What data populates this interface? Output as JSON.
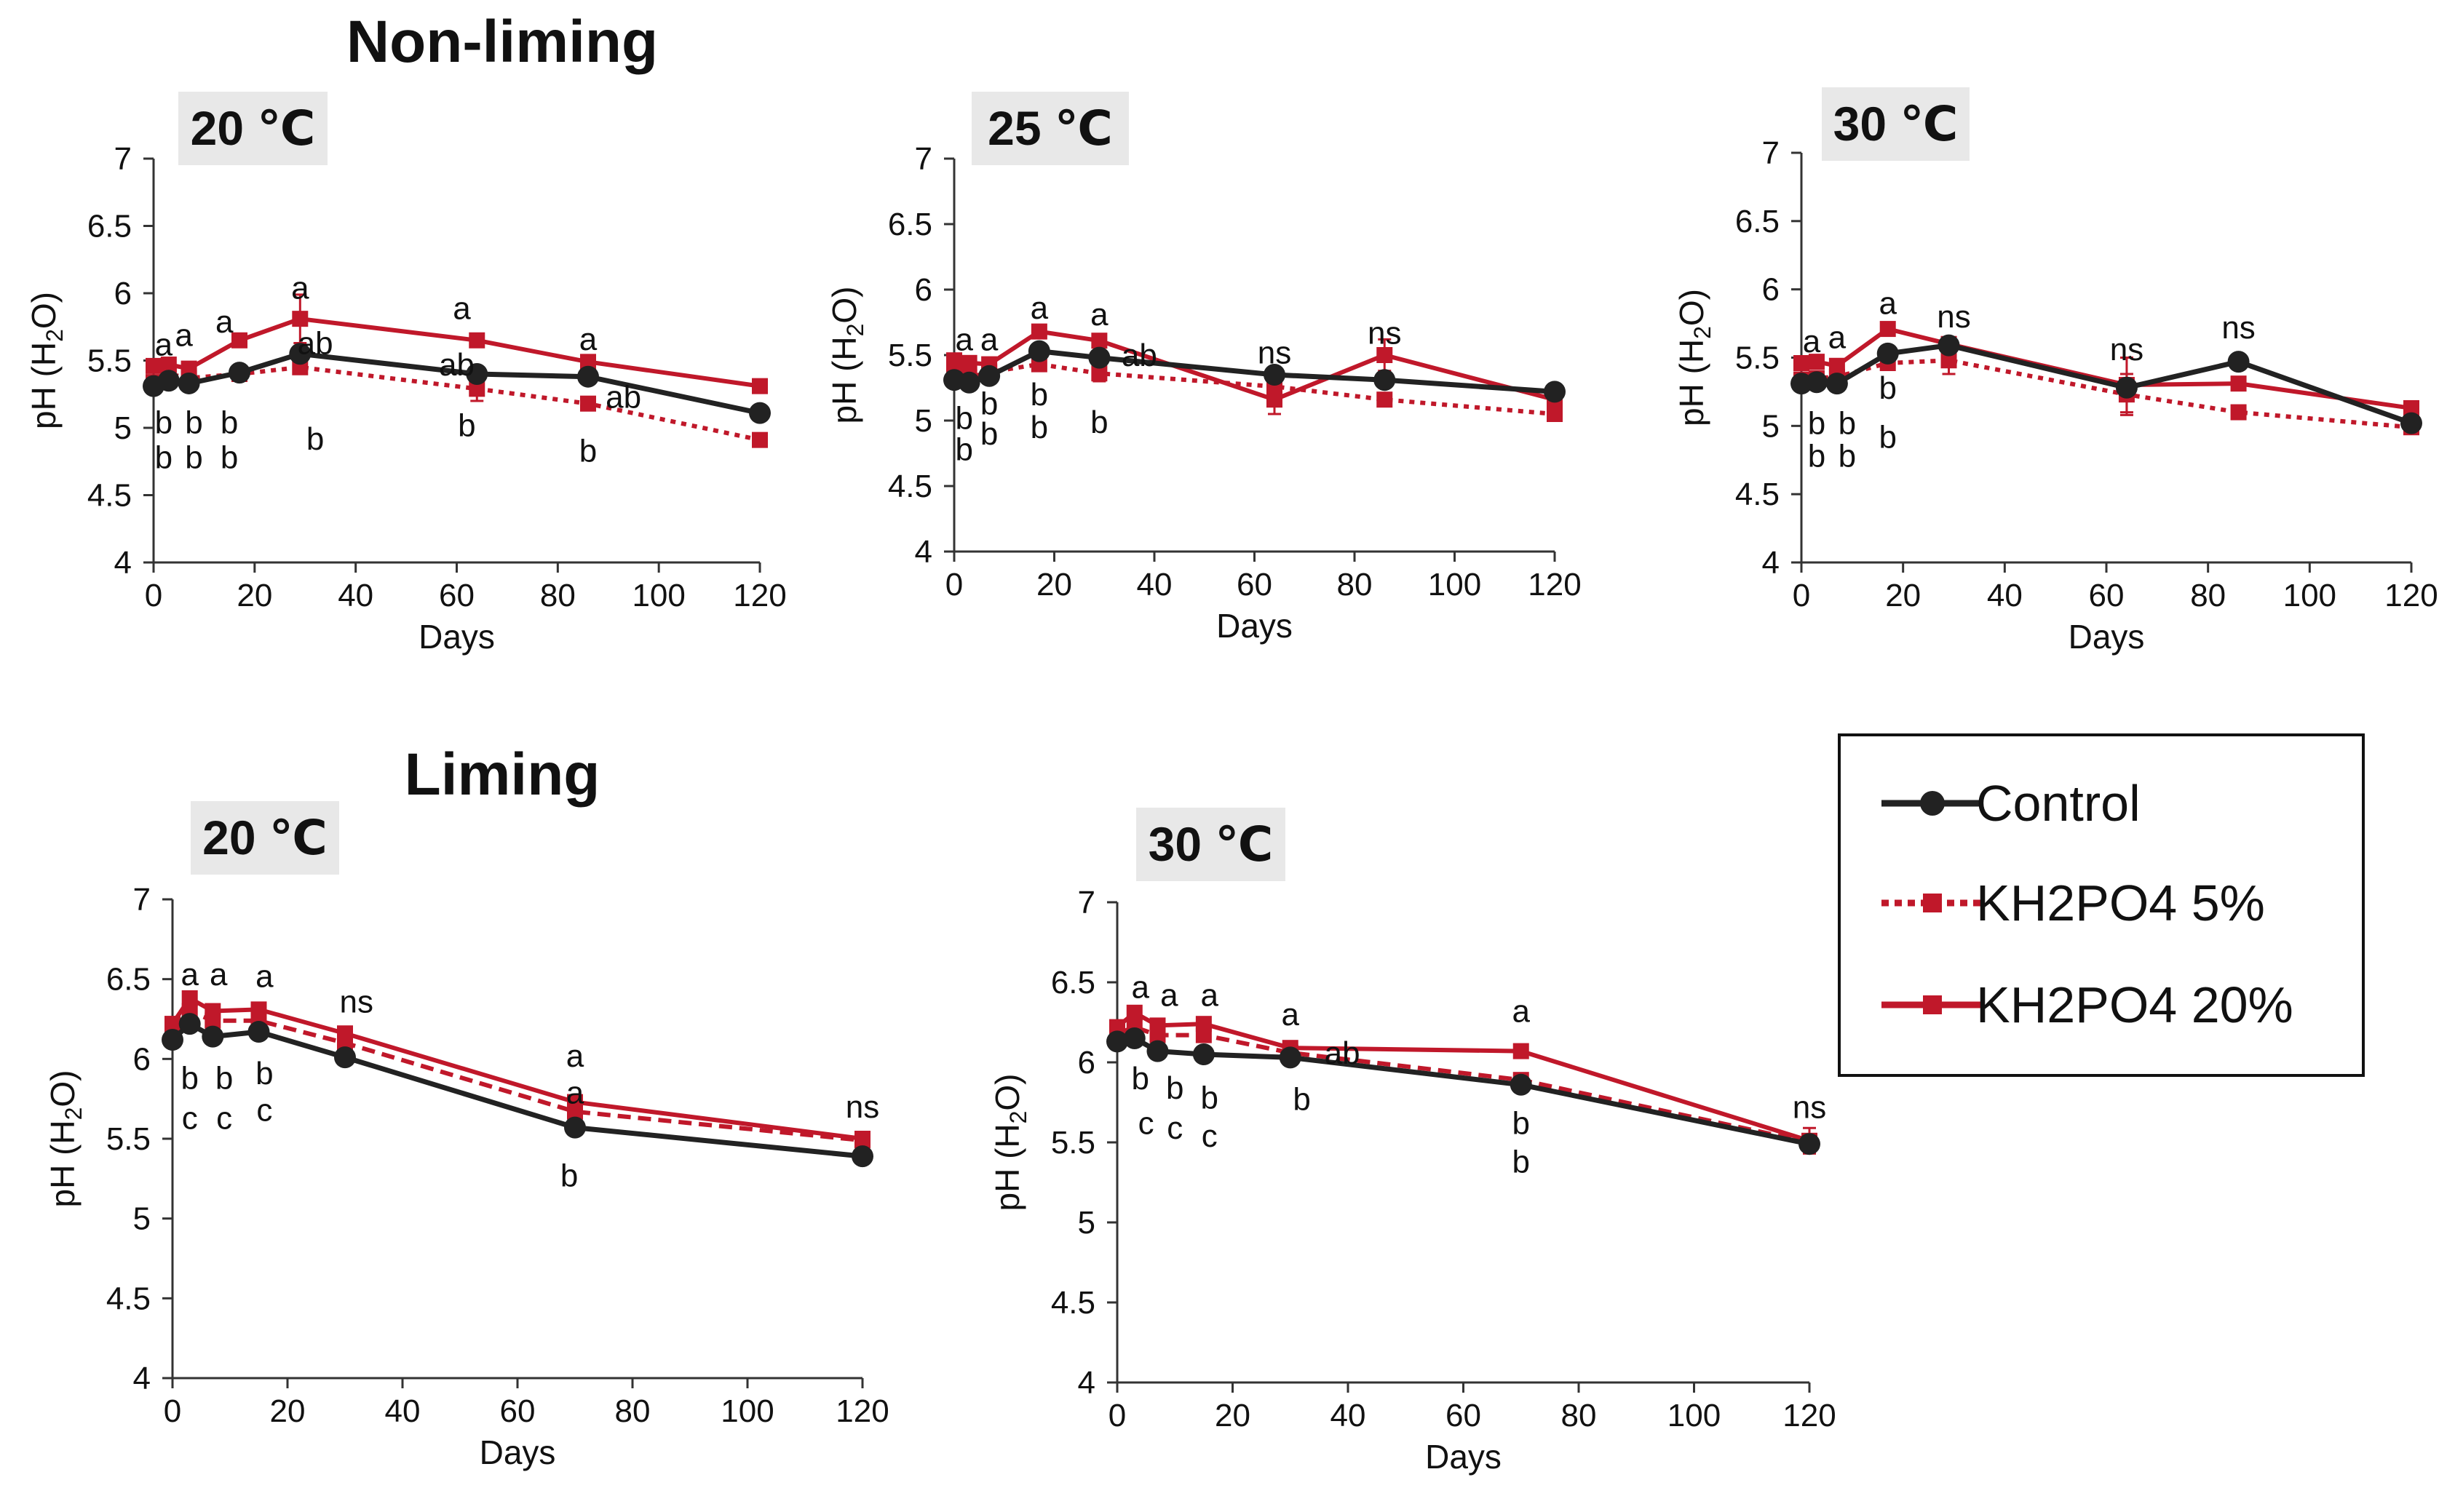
{
  "section_titles": {
    "nonliming": "Non-liming",
    "liming": "Liming"
  },
  "legend": {
    "control": "Control",
    "kh5": "KH2PO4 5%",
    "kh20": "KH2PO4 20%"
  },
  "colors": {
    "control": "#222222",
    "kh5": "#c0182a",
    "kh20": "#c0182a",
    "panel_bg": "#e8e8e8"
  },
  "chart_data": [
    {
      "id": "nl20",
      "type": "line",
      "panel_label": "20 ℃",
      "xlabel": "Days",
      "ylabel": "pH (H2O)",
      "xlim": [
        0,
        120
      ],
      "ylim": [
        4,
        7
      ],
      "xticks": [
        "0",
        "20",
        "40",
        "60",
        "80",
        "100",
        "120"
      ],
      "yticks": [
        "4",
        "4.5",
        "5",
        "5.5",
        "6",
        "6.5",
        "7"
      ],
      "series": [
        {
          "name": "Control",
          "key": "control",
          "x": [
            0,
            3,
            7,
            17,
            29,
            64,
            86,
            120
          ],
          "values": [
            5.31,
            5.35,
            5.33,
            5.41,
            5.55,
            5.4,
            5.38,
            5.11
          ]
        },
        {
          "name": "KH2PO4 5%",
          "key": "kh5",
          "x": [
            0,
            3,
            7,
            17,
            29,
            64,
            86,
            120
          ],
          "values": [
            5.34,
            5.4,
            5.37,
            5.4,
            5.45,
            5.29,
            5.18,
            4.91
          ],
          "err": [
            0,
            0,
            0,
            0,
            0,
            0.09,
            0,
            0
          ]
        },
        {
          "name": "KH2PO4 20%",
          "key": "kh20",
          "x": [
            0,
            3,
            7,
            17,
            29,
            64,
            86,
            120
          ],
          "values": [
            5.46,
            5.47,
            5.44,
            5.65,
            5.81,
            5.65,
            5.49,
            5.31
          ],
          "err": [
            0,
            0,
            0,
            0,
            0.18,
            0,
            0,
            0
          ]
        }
      ],
      "annotations": [
        {
          "text": "a",
          "x": 2,
          "y": 5.62
        },
        {
          "text": "a",
          "x": 6,
          "y": 5.69
        },
        {
          "text": "b",
          "x": 2,
          "y": 5.04
        },
        {
          "text": "b",
          "x": 2,
          "y": 4.78
        },
        {
          "text": "b",
          "x": 8,
          "y": 5.04
        },
        {
          "text": "b",
          "x": 8,
          "y": 4.78
        },
        {
          "text": "a",
          "x": 14,
          "y": 5.79
        },
        {
          "text": "b",
          "x": 15,
          "y": 5.04
        },
        {
          "text": "b",
          "x": 15,
          "y": 4.78
        },
        {
          "text": "a",
          "x": 29,
          "y": 6.04
        },
        {
          "text": "ab",
          "x": 32,
          "y": 5.63
        },
        {
          "text": "b",
          "x": 32,
          "y": 4.92
        },
        {
          "text": "a",
          "x": 61,
          "y": 5.89
        },
        {
          "text": "ab",
          "x": 60,
          "y": 5.47
        },
        {
          "text": "b",
          "x": 62,
          "y": 5.02
        },
        {
          "text": "a",
          "x": 86,
          "y": 5.66
        },
        {
          "text": "ab",
          "x": 93,
          "y": 5.23
        },
        {
          "text": "b",
          "x": 86,
          "y": 4.83
        }
      ]
    },
    {
      "id": "nl25",
      "type": "line",
      "panel_label": "25 ℃",
      "xlabel": "Days",
      "ylabel": "pH (H2O)",
      "xlim": [
        0,
        120
      ],
      "ylim": [
        4,
        7
      ],
      "xticks": [
        "0",
        "20",
        "40",
        "60",
        "80",
        "100",
        "120"
      ],
      "yticks": [
        "4",
        "4.5",
        "5",
        "5.5",
        "6",
        "6.5",
        "7"
      ],
      "series": [
        {
          "name": "Control",
          "key": "control",
          "x": [
            0,
            3,
            7,
            17,
            29,
            64,
            86,
            120
          ],
          "values": [
            5.31,
            5.29,
            5.34,
            5.53,
            5.48,
            5.35,
            5.31,
            5.22
          ]
        },
        {
          "name": "KH2PO4 5%",
          "key": "kh5",
          "x": [
            0,
            3,
            7,
            17,
            29,
            64,
            86,
            120
          ],
          "values": [
            5.34,
            5.33,
            5.37,
            5.43,
            5.36,
            5.26,
            5.16,
            5.05
          ],
          "err": [
            0,
            0,
            0,
            0,
            0.06,
            0,
            0.05,
            0
          ]
        },
        {
          "name": "KH2PO4 20%",
          "key": "kh20",
          "x": [
            0,
            3,
            7,
            17,
            29,
            64,
            86,
            120
          ],
          "values": [
            5.46,
            5.44,
            5.43,
            5.68,
            5.61,
            5.16,
            5.5,
            5.16
          ],
          "err": [
            0,
            0,
            0,
            0,
            0,
            0.11,
            0.12,
            0
          ]
        }
      ],
      "annotations": [
        {
          "text": "a",
          "x": 2,
          "y": 5.62
        },
        {
          "text": "a",
          "x": 7,
          "y": 5.62
        },
        {
          "text": "b",
          "x": 2,
          "y": 5.02
        },
        {
          "text": "b",
          "x": 2,
          "y": 4.78
        },
        {
          "text": "b",
          "x": 7,
          "y": 5.13
        },
        {
          "text": "b",
          "x": 7,
          "y": 4.9
        },
        {
          "text": "a",
          "x": 17,
          "y": 5.86
        },
        {
          "text": "b",
          "x": 17,
          "y": 5.2
        },
        {
          "text": "b",
          "x": 17,
          "y": 4.95
        },
        {
          "text": "a",
          "x": 29,
          "y": 5.81
        },
        {
          "text": "ab",
          "x": 37,
          "y": 5.5
        },
        {
          "text": "b",
          "x": 29,
          "y": 4.99
        },
        {
          "text": "ns",
          "x": 64,
          "y": 5.52
        },
        {
          "text": "ns",
          "x": 86,
          "y": 5.67
        }
      ]
    },
    {
      "id": "nl30",
      "type": "line",
      "panel_label": "30 ℃",
      "xlabel": "Days",
      "ylabel": "pH (H2O)",
      "xlim": [
        0,
        120
      ],
      "ylim": [
        4,
        7
      ],
      "xticks": [
        "0",
        "20",
        "40",
        "60",
        "80",
        "100",
        "120"
      ],
      "yticks": [
        "4",
        "4.5",
        "5",
        "5.5",
        "6",
        "6.5",
        "7"
      ],
      "series": [
        {
          "name": "Control",
          "key": "control",
          "x": [
            0,
            3,
            7,
            17,
            29,
            64,
            86,
            120
          ],
          "values": [
            5.31,
            5.32,
            5.31,
            5.53,
            5.59,
            5.28,
            5.47,
            5.02
          ]
        },
        {
          "name": "KH2PO4 5%",
          "key": "kh5",
          "x": [
            0,
            3,
            7,
            17,
            29,
            64,
            86,
            120
          ],
          "values": [
            5.34,
            5.35,
            5.36,
            5.46,
            5.48,
            5.23,
            5.1,
            4.99
          ],
          "err": [
            0,
            0,
            0,
            0,
            0.1,
            0.15,
            0,
            0
          ]
        },
        {
          "name": "KH2PO4 20%",
          "key": "kh20",
          "x": [
            0,
            3,
            7,
            17,
            29,
            64,
            86,
            120
          ],
          "values": [
            5.46,
            5.47,
            5.44,
            5.71,
            5.6,
            5.3,
            5.31,
            5.13
          ],
          "err": [
            0,
            0,
            0,
            0,
            0,
            0.2,
            0,
            0
          ]
        }
      ],
      "annotations": [
        {
          "text": "a",
          "x": 2,
          "y": 5.62
        },
        {
          "text": "a",
          "x": 7,
          "y": 5.65
        },
        {
          "text": "b",
          "x": 3,
          "y": 5.02
        },
        {
          "text": "b",
          "x": 3,
          "y": 4.78
        },
        {
          "text": "b",
          "x": 9,
          "y": 5.02
        },
        {
          "text": "b",
          "x": 9,
          "y": 4.78
        },
        {
          "text": "a",
          "x": 17,
          "y": 5.9
        },
        {
          "text": "b",
          "x": 17,
          "y": 5.28
        },
        {
          "text": "b",
          "x": 17,
          "y": 4.92
        },
        {
          "text": "ns",
          "x": 30,
          "y": 5.8
        },
        {
          "text": "ns",
          "x": 64,
          "y": 5.56
        },
        {
          "text": "ns",
          "x": 86,
          "y": 5.72
        }
      ]
    },
    {
      "id": "l20",
      "type": "line",
      "panel_label": "20 ℃",
      "xlabel": "Days",
      "ylabel": "pH (H2O)",
      "xlim": [
        0,
        120
      ],
      "ylim": [
        4,
        7
      ],
      "xticks": [
        "0",
        "20",
        "40",
        "60",
        "80",
        "100",
        "120"
      ],
      "yticks": [
        "4",
        "4.5",
        "5",
        "5.5",
        "6",
        "6.5",
        "7"
      ],
      "series": [
        {
          "name": "Control",
          "key": "control",
          "x": [
            0,
            3,
            7,
            15,
            30,
            70,
            120
          ],
          "values": [
            6.12,
            6.22,
            6.14,
            6.17,
            6.01,
            5.57,
            5.39
          ]
        },
        {
          "name": "KH2PO4 5%",
          "key": "kh5",
          "x": [
            0,
            3,
            7,
            15,
            30,
            70,
            120
          ],
          "values": [
            6.18,
            6.3,
            6.24,
            6.24,
            6.1,
            5.67,
            5.49
          ]
        },
        {
          "name": "KH2PO4 20%",
          "key": "kh20",
          "x": [
            0,
            3,
            7,
            15,
            30,
            70,
            120
          ],
          "values": [
            6.22,
            6.38,
            6.3,
            6.31,
            6.16,
            5.73,
            5.5
          ]
        }
      ],
      "annotations": [
        {
          "text": "a",
          "x": 3,
          "y": 6.53
        },
        {
          "text": "a",
          "x": 8,
          "y": 6.53
        },
        {
          "text": "a",
          "x": 16,
          "y": 6.52
        },
        {
          "text": "b",
          "x": 3,
          "y": 5.88
        },
        {
          "text": "c",
          "x": 3,
          "y": 5.63
        },
        {
          "text": "b",
          "x": 9,
          "y": 5.88
        },
        {
          "text": "c",
          "x": 9,
          "y": 5.63
        },
        {
          "text": "b",
          "x": 16,
          "y": 5.91
        },
        {
          "text": "c",
          "x": 16,
          "y": 5.68
        },
        {
          "text": "ns",
          "x": 32,
          "y": 6.36
        },
        {
          "text": "a",
          "x": 70,
          "y": 6.02
        },
        {
          "text": "a",
          "x": 70,
          "y": 5.79
        },
        {
          "text": "b",
          "x": 69,
          "y": 5.27
        },
        {
          "text": "ns",
          "x": 120,
          "y": 5.7
        }
      ]
    },
    {
      "id": "l30",
      "type": "line",
      "panel_label": "30 ℃",
      "xlabel": "Days",
      "ylabel": "pH (H2O)",
      "xlim": [
        0,
        120
      ],
      "ylim": [
        4,
        7
      ],
      "xticks": [
        "0",
        "20",
        "40",
        "60",
        "80",
        "100",
        "120"
      ],
      "yticks": [
        "4",
        "4.5",
        "5",
        "5.5",
        "6",
        "6.5",
        "7"
      ],
      "series": [
        {
          "name": "Control",
          "key": "control",
          "x": [
            0,
            3,
            7,
            15,
            30,
            70,
            120
          ],
          "values": [
            6.13,
            6.15,
            6.07,
            6.05,
            6.03,
            5.86,
            5.49
          ]
        },
        {
          "name": "KH2PO4 5%",
          "key": "kh5",
          "x": [
            0,
            3,
            7,
            15,
            30,
            70,
            120
          ],
          "values": [
            6.18,
            6.22,
            6.17,
            6.17,
            6.06,
            5.89,
            5.5
          ]
        },
        {
          "name": "KH2PO4 20%",
          "key": "kh20",
          "x": [
            0,
            3,
            7,
            15,
            30,
            70,
            120
          ],
          "values": [
            6.22,
            6.31,
            6.23,
            6.24,
            6.09,
            6.07,
            5.51
          ],
          "err": [
            0,
            0,
            0,
            0,
            0,
            0,
            0.08
          ]
        }
      ],
      "annotations": [
        {
          "text": "a",
          "x": 4,
          "y": 6.47
        },
        {
          "text": "a",
          "x": 9,
          "y": 6.42
        },
        {
          "text": "a",
          "x": 16,
          "y": 6.42
        },
        {
          "text": "b",
          "x": 4,
          "y": 5.9
        },
        {
          "text": "c",
          "x": 5,
          "y": 5.62
        },
        {
          "text": "b",
          "x": 10,
          "y": 5.84
        },
        {
          "text": "c",
          "x": 10,
          "y": 5.59
        },
        {
          "text": "b",
          "x": 16,
          "y": 5.78
        },
        {
          "text": "c",
          "x": 16,
          "y": 5.54
        },
        {
          "text": "a",
          "x": 30,
          "y": 6.3
        },
        {
          "text": "ab",
          "x": 39,
          "y": 6.06
        },
        {
          "text": "b",
          "x": 32,
          "y": 5.77
        },
        {
          "text": "a",
          "x": 70,
          "y": 6.32
        },
        {
          "text": "b",
          "x": 70,
          "y": 5.62
        },
        {
          "text": "b",
          "x": 70,
          "y": 5.38
        },
        {
          "text": "ns",
          "x": 120,
          "y": 5.72
        }
      ]
    }
  ]
}
